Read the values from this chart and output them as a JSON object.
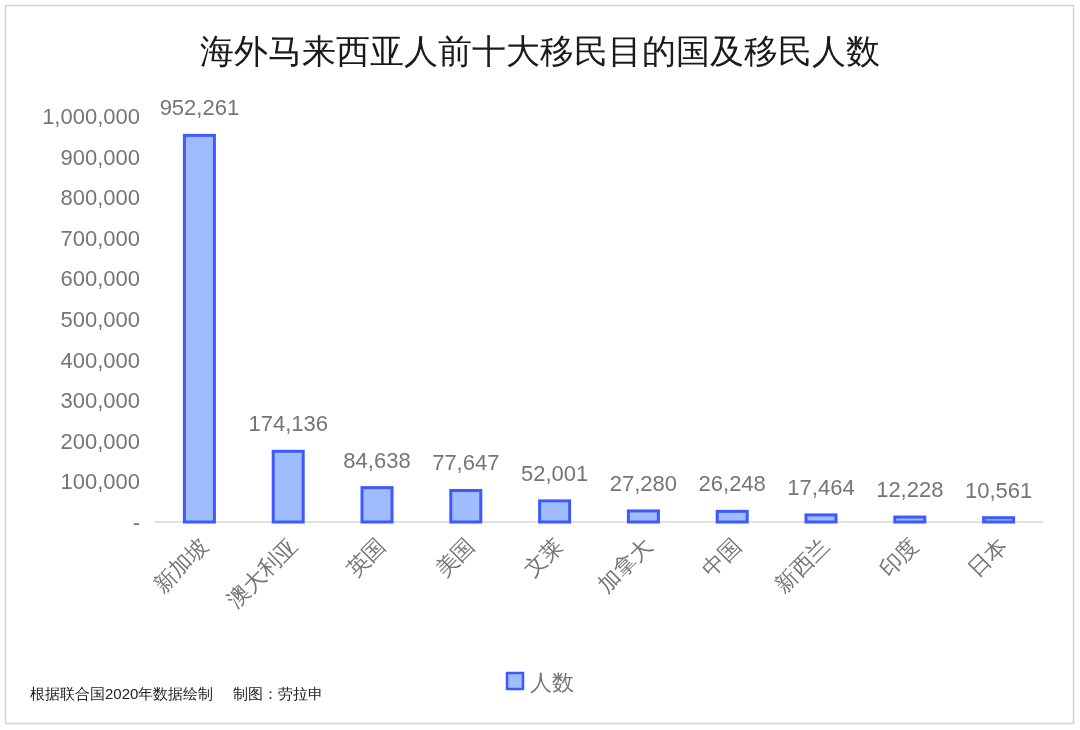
{
  "chart_data": {
    "type": "bar",
    "title": "海外马来西亚人前十大移民目的国及移民人数",
    "categories": [
      "新加坡",
      "澳大利亚",
      "英国",
      "美国",
      "文莱",
      "加拿大",
      "中国",
      "新西兰",
      "印度",
      "日本"
    ],
    "series": [
      {
        "name": "人数",
        "color": "#9fbcfe",
        "values": [
          952261,
          174136,
          84638,
          77647,
          52001,
          27280,
          26248,
          17464,
          12228,
          10561
        ],
        "value_labels": [
          "952,261",
          "174,136",
          "84,638",
          "77,647",
          "52,001",
          "27,280",
          "26,248",
          "17,464",
          "12,228",
          "10,561"
        ]
      }
    ],
    "ylim": [
      0,
      1000000
    ],
    "yticks": [
      {
        "value": 0,
        "label": "-"
      },
      {
        "value": 100000,
        "label": "100,000"
      },
      {
        "value": 200000,
        "label": "200,000"
      },
      {
        "value": 300000,
        "label": "300,000"
      },
      {
        "value": 400000,
        "label": "400,000"
      },
      {
        "value": 500000,
        "label": "500,000"
      },
      {
        "value": 600000,
        "label": "600,000"
      },
      {
        "value": 700000,
        "label": "700,000"
      },
      {
        "value": 800000,
        "label": "800,000"
      },
      {
        "value": 900000,
        "label": "900,000"
      },
      {
        "value": 1000000,
        "label": "1,000,000"
      }
    ],
    "legend": "bottom",
    "grid": false,
    "annotations": [
      "根据联合国2020年数据绘制",
      "制图：劳拉申"
    ]
  }
}
